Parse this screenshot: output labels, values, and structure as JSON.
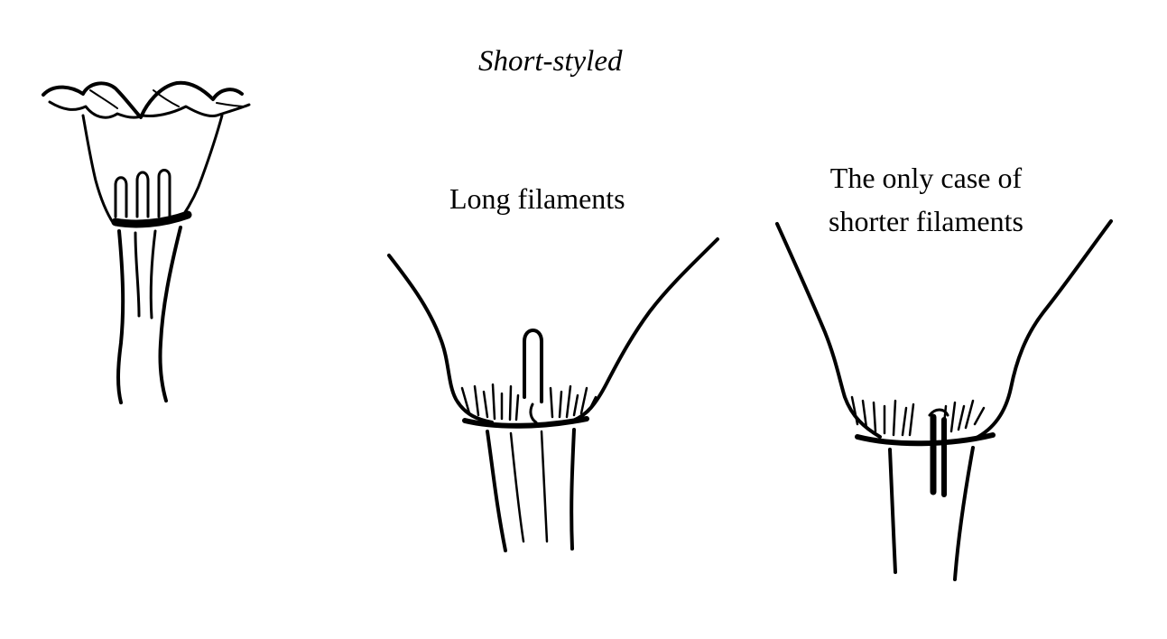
{
  "figure": {
    "title": "Short-styled",
    "panels": [
      {
        "label": ""
      },
      {
        "label": "Long filaments"
      },
      {
        "label_line1": "The only case of",
        "label_line2": "shorter filaments"
      }
    ]
  },
  "colors": {
    "ink": "#000000",
    "background": "#ffffff"
  }
}
